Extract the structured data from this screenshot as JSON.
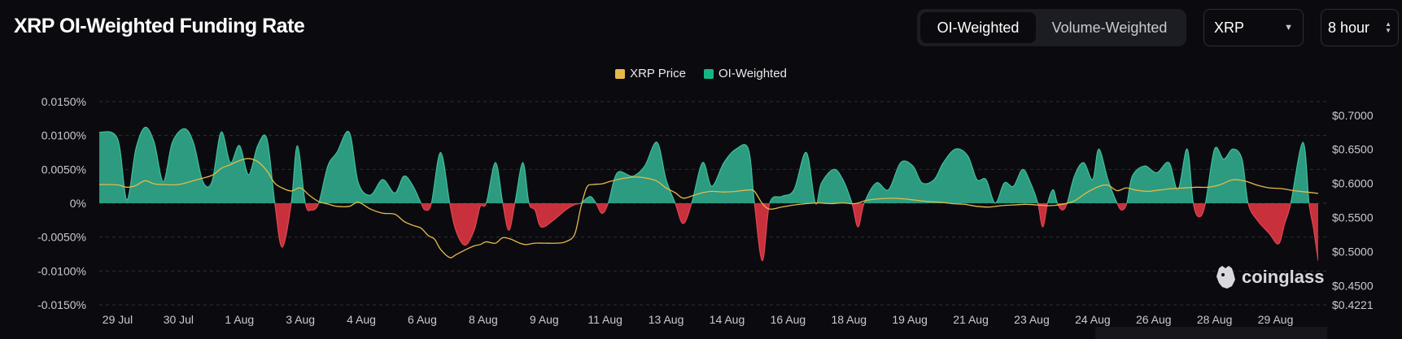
{
  "header": {
    "title": "XRP OI-Weighted Funding Rate",
    "toggle": {
      "active_label": "OI-Weighted",
      "inactive_label": "Volume-Weighted"
    },
    "coin_select": {
      "value": "XRP"
    },
    "interval_select": {
      "value": "8 hour"
    }
  },
  "colors": {
    "positive": "#2ea387",
    "negative": "#d3343f",
    "price": "#e6b94a",
    "grid": "#2c2d33",
    "text": "#c9c9ce"
  },
  "watermark": {
    "brand": "coinglass"
  },
  "chart_data": {
    "type": "area",
    "title": "XRP OI-Weighted Funding Rate",
    "legend": [
      {
        "name": "XRP Price",
        "color": "#e6b94a"
      },
      {
        "name": "OI-Weighted",
        "color": "#18b583"
      }
    ],
    "x_labels": [
      "29 Jul",
      "30 Jul",
      "1 Aug",
      "3 Aug",
      "4 Aug",
      "6 Aug",
      "8 Aug",
      "9 Aug",
      "11 Aug",
      "13 Aug",
      "14 Aug",
      "16 Aug",
      "18 Aug",
      "19 Aug",
      "21 Aug",
      "23 Aug",
      "24 Aug",
      "26 Aug",
      "28 Aug",
      "29 Aug"
    ],
    "y_left": {
      "min": -0.015,
      "max": 0.015,
      "ticks": [
        "0.0150%",
        "0.0100%",
        "0.0050%",
        "0%",
        "-0.0050%",
        "-0.0100%",
        "-0.0150%"
      ]
    },
    "y_right": {
      "min": 0.4221,
      "max": 0.72,
      "ticks": [
        "$0.7000",
        "$0.6500",
        "$0.6000",
        "$0.5500",
        "$0.5000",
        "$0.4500",
        "$0.4221"
      ]
    },
    "x_range": [
      0,
      20
    ],
    "funding_series": {
      "name": "OI-Weighted",
      "points": [
        [
          0,
          0.0105
        ],
        [
          0.3,
          0.0095
        ],
        [
          0.45,
          0.0005
        ],
        [
          0.6,
          0.008
        ],
        [
          0.75,
          0.0112
        ],
        [
          0.9,
          0.009
        ],
        [
          1.05,
          0.0032
        ],
        [
          1.2,
          0.009
        ],
        [
          1.4,
          0.011
        ],
        [
          1.55,
          0.0088
        ],
        [
          1.7,
          0.0032
        ],
        [
          1.85,
          0.0032
        ],
        [
          2.0,
          0.0105
        ],
        [
          2.15,
          0.006
        ],
        [
          2.3,
          0.0085
        ],
        [
          2.45,
          0.0042
        ],
        [
          2.6,
          0.0085
        ],
        [
          2.75,
          0.0095
        ],
        [
          2.88,
          0.0
        ],
        [
          3.0,
          -0.0065
        ],
        [
          3.15,
          0.0
        ],
        [
          3.25,
          0.0085
        ],
        [
          3.38,
          0.0
        ],
        [
          3.48,
          -0.001
        ],
        [
          3.6,
          0.0
        ],
        [
          3.75,
          0.0055
        ],
        [
          3.9,
          0.0075
        ],
        [
          4.1,
          0.0105
        ],
        [
          4.25,
          0.003
        ],
        [
          4.45,
          0.0012
        ],
        [
          4.65,
          0.0035
        ],
        [
          4.85,
          0.0015
        ],
        [
          5.0,
          0.004
        ],
        [
          5.15,
          0.0025
        ],
        [
          5.28,
          0.0
        ],
        [
          5.35,
          -0.001
        ],
        [
          5.45,
          0.0
        ],
        [
          5.6,
          0.0075
        ],
        [
          5.75,
          0.0
        ],
        [
          5.85,
          -0.004
        ],
        [
          6.0,
          -0.0062
        ],
        [
          6.15,
          -0.004
        ],
        [
          6.25,
          -0.0005
        ],
        [
          6.35,
          0.0
        ],
        [
          6.5,
          0.006
        ],
        [
          6.62,
          0.0
        ],
        [
          6.72,
          -0.004
        ],
        [
          6.82,
          0.0
        ],
        [
          6.95,
          0.006
        ],
        [
          7.05,
          0.0
        ],
        [
          7.15,
          -0.001
        ],
        [
          7.25,
          -0.0035
        ],
        [
          7.45,
          -0.0025
        ],
        [
          7.65,
          -0.001
        ],
        [
          7.8,
          -0.0002
        ],
        [
          7.9,
          0.0
        ],
        [
          8.05,
          0.001
        ],
        [
          8.15,
          0.0
        ],
        [
          8.25,
          -0.0015
        ],
        [
          8.35,
          0.0
        ],
        [
          8.5,
          0.0045
        ],
        [
          8.75,
          0.004
        ],
        [
          8.95,
          0.0055
        ],
        [
          9.15,
          0.009
        ],
        [
          9.3,
          0.0035
        ],
        [
          9.45,
          0.0
        ],
        [
          9.58,
          -0.003
        ],
        [
          9.72,
          0.0
        ],
        [
          9.9,
          0.006
        ],
        [
          10.05,
          0.0025
        ],
        [
          10.25,
          0.006
        ],
        [
          10.45,
          0.008
        ],
        [
          10.65,
          0.008
        ],
        [
          10.75,
          0.0
        ],
        [
          10.88,
          -0.0085
        ],
        [
          11.0,
          0.0
        ],
        [
          11.2,
          0.001
        ],
        [
          11.4,
          0.002
        ],
        [
          11.6,
          0.0075
        ],
        [
          11.75,
          0.0
        ],
        [
          11.85,
          0.003
        ],
        [
          12.05,
          0.005
        ],
        [
          12.2,
          0.0035
        ],
        [
          12.35,
          0.0
        ],
        [
          12.45,
          -0.0035
        ],
        [
          12.55,
          0.0
        ],
        [
          12.75,
          0.003
        ],
        [
          12.95,
          0.002
        ],
        [
          13.15,
          0.006
        ],
        [
          13.35,
          0.0055
        ],
        [
          13.5,
          0.003
        ],
        [
          13.7,
          0.0035
        ],
        [
          13.85,
          0.006
        ],
        [
          14.05,
          0.008
        ],
        [
          14.25,
          0.007
        ],
        [
          14.4,
          0.0035
        ],
        [
          14.55,
          0.0035
        ],
        [
          14.7,
          0.0
        ],
        [
          14.85,
          0.003
        ],
        [
          15.0,
          0.0025
        ],
        [
          15.15,
          0.005
        ],
        [
          15.28,
          0.003
        ],
        [
          15.4,
          0.0
        ],
        [
          15.48,
          -0.0035
        ],
        [
          15.56,
          0.0
        ],
        [
          15.65,
          0.002
        ],
        [
          15.72,
          0.0
        ],
        [
          15.8,
          -0.001
        ],
        [
          15.88,
          0.0
        ],
        [
          16.0,
          0.004
        ],
        [
          16.15,
          0.006
        ],
        [
          16.3,
          0.0035
        ],
        [
          16.4,
          0.008
        ],
        [
          16.55,
          0.0035
        ],
        [
          16.7,
          0.0
        ],
        [
          16.78,
          -0.001
        ],
        [
          16.86,
          0.0
        ],
        [
          16.95,
          0.004
        ],
        [
          17.15,
          0.0055
        ],
        [
          17.35,
          0.0045
        ],
        [
          17.55,
          0.006
        ],
        [
          17.7,
          0.002
        ],
        [
          17.85,
          0.008
        ],
        [
          17.95,
          0.0
        ],
        [
          18.05,
          -0.002
        ],
        [
          18.15,
          0.0
        ],
        [
          18.3,
          0.008
        ],
        [
          18.45,
          0.0065
        ],
        [
          18.6,
          0.008
        ],
        [
          18.75,
          0.0065
        ],
        [
          18.85,
          0.0
        ],
        [
          19.0,
          -0.0025
        ],
        [
          19.2,
          -0.0045
        ],
        [
          19.35,
          -0.006
        ],
        [
          19.45,
          -0.003
        ],
        [
          19.55,
          0.0
        ],
        [
          19.75,
          0.009
        ],
        [
          19.85,
          0.0
        ],
        [
          19.92,
          -0.0035
        ],
        [
          19.96,
          -0.006
        ],
        [
          20.0,
          -0.0085
        ]
      ]
    },
    "price_series": {
      "name": "XRP Price",
      "points": [
        [
          0,
          0.5985
        ],
        [
          0.3,
          0.598
        ],
        [
          0.45,
          0.5945
        ],
        [
          0.6,
          0.597
        ],
        [
          0.75,
          0.604
        ],
        [
          0.9,
          0.5995
        ],
        [
          1.05,
          0.5985
        ],
        [
          1.3,
          0.5985
        ],
        [
          1.6,
          0.6055
        ],
        [
          1.85,
          0.612
        ],
        [
          2.0,
          0.622
        ],
        [
          2.15,
          0.6275
        ],
        [
          2.3,
          0.6335
        ],
        [
          2.45,
          0.6365
        ],
        [
          2.6,
          0.632
        ],
        [
          2.75,
          0.6185
        ],
        [
          2.88,
          0.6005
        ],
        [
          3.0,
          0.5935
        ],
        [
          3.15,
          0.589
        ],
        [
          3.3,
          0.5935
        ],
        [
          3.45,
          0.5825
        ],
        [
          3.6,
          0.5735
        ],
        [
          3.75,
          0.57
        ],
        [
          3.9,
          0.5665
        ],
        [
          4.1,
          0.5665
        ],
        [
          4.25,
          0.5725
        ],
        [
          4.45,
          0.5625
        ],
        [
          4.65,
          0.5565
        ],
        [
          4.85,
          0.555
        ],
        [
          5.0,
          0.5445
        ],
        [
          5.15,
          0.5385
        ],
        [
          5.28,
          0.5345
        ],
        [
          5.4,
          0.5235
        ],
        [
          5.5,
          0.5185
        ],
        [
          5.6,
          0.5035
        ],
        [
          5.75,
          0.4915
        ],
        [
          5.85,
          0.4955
        ],
        [
          6.0,
          0.5025
        ],
        [
          6.15,
          0.5085
        ],
        [
          6.25,
          0.5105
        ],
        [
          6.35,
          0.5145
        ],
        [
          6.5,
          0.5125
        ],
        [
          6.62,
          0.5205
        ],
        [
          6.75,
          0.5185
        ],
        [
          6.9,
          0.5125
        ],
        [
          7.0,
          0.5105
        ],
        [
          7.15,
          0.5125
        ],
        [
          7.3,
          0.5125
        ],
        [
          7.5,
          0.5125
        ],
        [
          7.65,
          0.5145
        ],
        [
          7.8,
          0.5255
        ],
        [
          7.9,
          0.5645
        ],
        [
          8.0,
          0.5945
        ],
        [
          8.1,
          0.5985
        ],
        [
          8.25,
          0.5995
        ],
        [
          8.4,
          0.6035
        ],
        [
          8.6,
          0.6075
        ],
        [
          8.8,
          0.6095
        ],
        [
          9.0,
          0.6075
        ],
        [
          9.15,
          0.6035
        ],
        [
          9.3,
          0.5935
        ],
        [
          9.45,
          0.5865
        ],
        [
          9.58,
          0.5785
        ],
        [
          9.75,
          0.5825
        ],
        [
          9.9,
          0.5865
        ],
        [
          10.05,
          0.5885
        ],
        [
          10.25,
          0.5875
        ],
        [
          10.45,
          0.5885
        ],
        [
          10.65,
          0.5905
        ],
        [
          10.75,
          0.5885
        ],
        [
          10.88,
          0.5705
        ],
        [
          11.0,
          0.5625
        ],
        [
          11.2,
          0.5655
        ],
        [
          11.4,
          0.5685
        ],
        [
          11.6,
          0.5705
        ],
        [
          11.8,
          0.5715
        ],
        [
          12.0,
          0.5705
        ],
        [
          12.2,
          0.5715
        ],
        [
          12.4,
          0.5705
        ],
        [
          12.6,
          0.5755
        ],
        [
          12.8,
          0.5775
        ],
        [
          13.0,
          0.5785
        ],
        [
          13.2,
          0.5775
        ],
        [
          13.4,
          0.5755
        ],
        [
          13.6,
          0.5735
        ],
        [
          13.8,
          0.5725
        ],
        [
          14.0,
          0.5705
        ],
        [
          14.2,
          0.5695
        ],
        [
          14.4,
          0.5665
        ],
        [
          14.6,
          0.5655
        ],
        [
          14.8,
          0.5675
        ],
        [
          15.0,
          0.5685
        ],
        [
          15.2,
          0.5695
        ],
        [
          15.4,
          0.5685
        ],
        [
          15.6,
          0.5675
        ],
        [
          15.8,
          0.5695
        ],
        [
          16.0,
          0.5745
        ],
        [
          16.2,
          0.5865
        ],
        [
          16.4,
          0.5955
        ],
        [
          16.55,
          0.5975
        ],
        [
          16.7,
          0.5895
        ],
        [
          16.85,
          0.5935
        ],
        [
          17.0,
          0.5905
        ],
        [
          17.2,
          0.5885
        ],
        [
          17.4,
          0.5905
        ],
        [
          17.6,
          0.5925
        ],
        [
          17.8,
          0.5935
        ],
        [
          18.0,
          0.5945
        ],
        [
          18.2,
          0.5945
        ],
        [
          18.4,
          0.5985
        ],
        [
          18.6,
          0.6055
        ],
        [
          18.8,
          0.6035
        ],
        [
          19.0,
          0.5975
        ],
        [
          19.2,
          0.5935
        ],
        [
          19.4,
          0.5925
        ],
        [
          19.6,
          0.5895
        ],
        [
          19.8,
          0.5875
        ],
        [
          20.0,
          0.5855
        ]
      ]
    }
  }
}
